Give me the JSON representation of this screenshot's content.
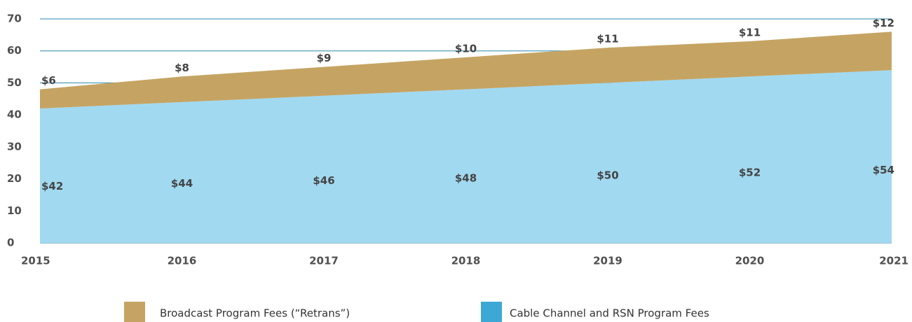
{
  "chart_data": {
    "type": "area",
    "stacked": true,
    "x": [
      2015,
      2016,
      2017,
      2018,
      2019,
      2020,
      2021
    ],
    "series": [
      {
        "name": "Cable Channel and RSN Program Fees",
        "color": "#a1d9f0",
        "legend_color": "#3ea8d4",
        "values": [
          42,
          44,
          46,
          48,
          50,
          52,
          54
        ],
        "value_labels": [
          "$42",
          "$44",
          "$46",
          "$48",
          "$50",
          "$52",
          "$54"
        ]
      },
      {
        "name": "Broadcast Program Fees (“Retrans”)",
        "color": "#c5a463",
        "legend_color": "#c5a463",
        "values": [
          6,
          8,
          9,
          10,
          11,
          11,
          12
        ],
        "value_labels": [
          "$6",
          "$8",
          "$9",
          "$10",
          "$11",
          "$11",
          "$12"
        ]
      }
    ],
    "xlim": [
      2015,
      2021
    ],
    "xticks": [
      2015,
      2016,
      2017,
      2018,
      2019,
      2020,
      2021
    ],
    "ylim": [
      0,
      70
    ],
    "yticks": [
      0,
      10,
      20,
      30,
      40,
      50,
      60,
      70
    ],
    "grid": true,
    "grid_color": "#2b87a8",
    "legend": "bottom"
  }
}
